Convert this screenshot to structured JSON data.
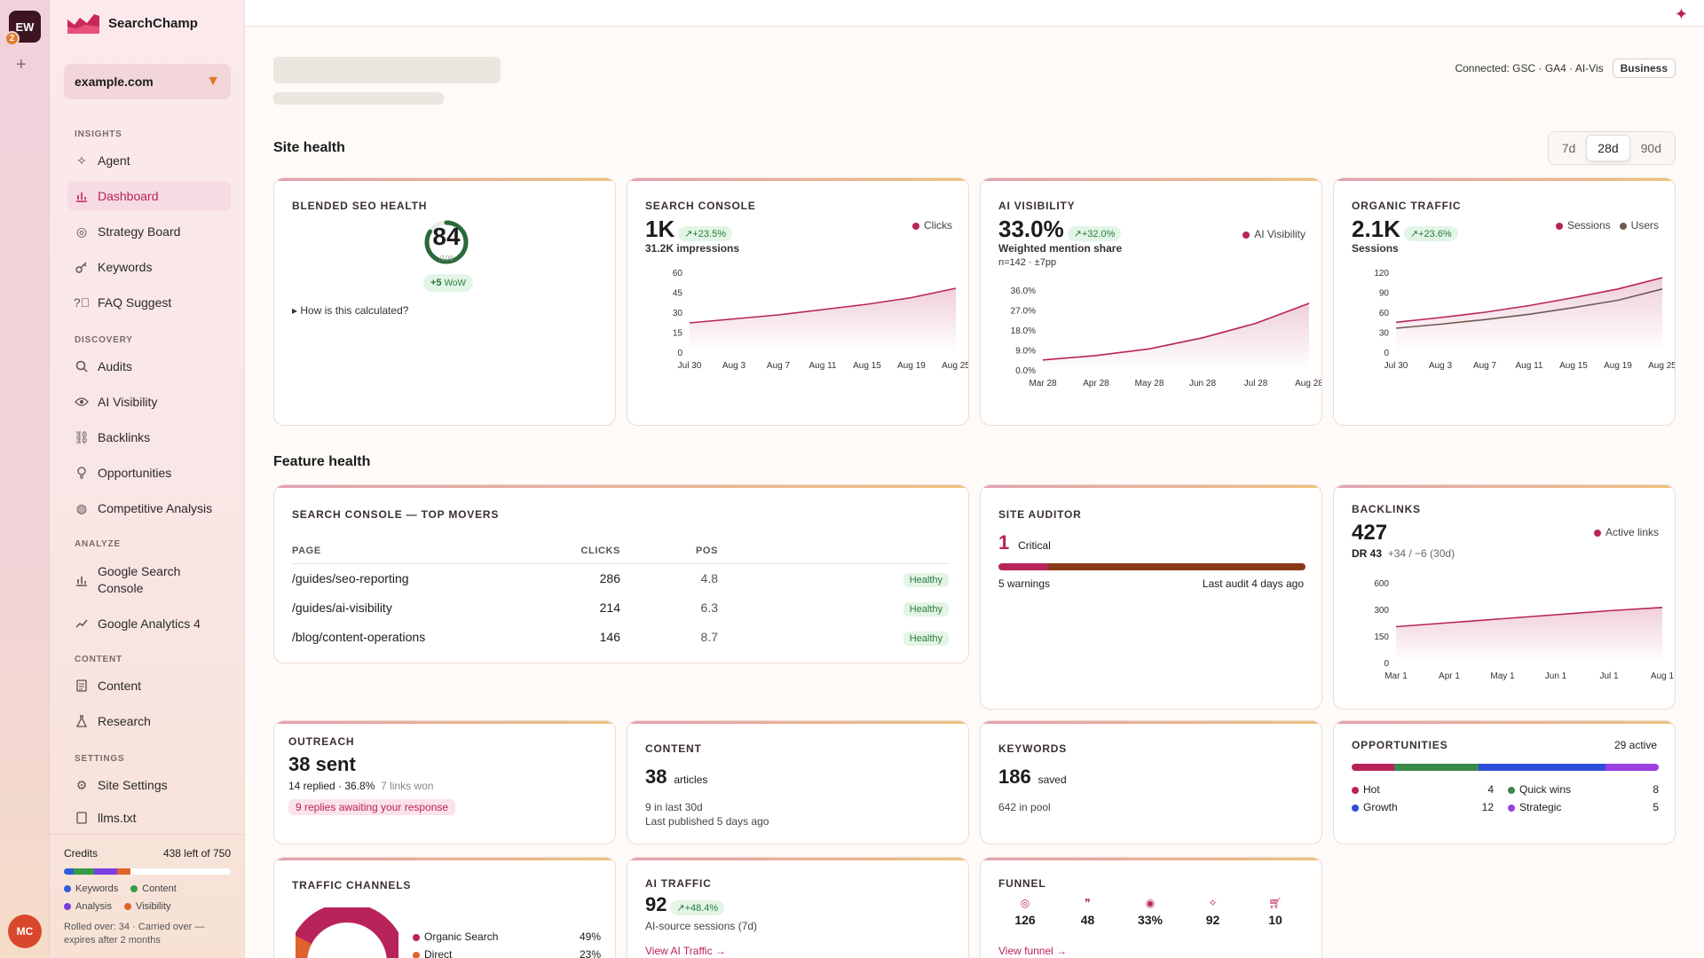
{
  "workspace": {
    "initials": "EW",
    "badge": "2",
    "user_initials": "MC"
  },
  "brand": {
    "name": "SearchChamp"
  },
  "site": {
    "selected": "example.com"
  },
  "nav": {
    "insights_label": "INSIGHTS",
    "agent": "Agent",
    "dashboard": "Dashboard",
    "strategy": "Strategy Board",
    "keywords": "Keywords",
    "faq": "FAQ Suggest",
    "discovery_label": "DISCOVERY",
    "audits": "Audits",
    "ai_visibility": "AI Visibility",
    "backlinks": "Backlinks",
    "opportunities": "Opportunities",
    "competitive": "Competitive Analysis",
    "analyze_label": "ANALYZE",
    "gsc": "Google Search Console",
    "ga4": "Google Analytics 4",
    "content_label": "CONTENT",
    "content": "Content",
    "research": "Research",
    "settings_label": "SETTINGS",
    "site_settings": "Site Settings",
    "llms": "llms.txt"
  },
  "credits": {
    "label": "Credits",
    "remaining": "438 left of 750",
    "segments": [
      {
        "name": "Keywords",
        "color": "#2f5ed8",
        "fraction": 0.06
      },
      {
        "name": "Content",
        "color": "#3a9a4a",
        "fraction": 0.12
      },
      {
        "name": "Analysis",
        "color": "#7b3fe0",
        "fraction": 0.14
      },
      {
        "name": "Visibility",
        "color": "#e0622c",
        "fraction": 0.08
      }
    ],
    "legend": [
      "Keywords",
      "Content",
      "Analysis",
      "Visibility"
    ],
    "note": "Rolled over: 34 · Carried over — expires after 2 months"
  },
  "header": {
    "connected": "Connected: GSC · GA4 · AI-Vis",
    "plan": "Business"
  },
  "site_health": {
    "title": "Site health",
    "ranges": [
      "7d",
      "28d",
      "90d"
    ],
    "selected_range": "28d"
  },
  "blended": {
    "title": "BLENDED SEO HEALTH",
    "score": "84",
    "score_sub": "/100",
    "delta": "+5",
    "delta_unit": "WoW",
    "how": "How is this calculated?",
    "fraction": 0.84
  },
  "gsc_card": {
    "title": "SEARCH CONSOLE",
    "value": "1K",
    "delta": "+23.5%",
    "sub": "31.2K impressions",
    "legend": "Clicks"
  },
  "ai_card": {
    "title": "AI VISIBILITY",
    "value": "33.0%",
    "delta": "+32.0%",
    "sub": "Weighted mention share",
    "sub2": "n=142 · ±7pp",
    "legend": "AI Visibility"
  },
  "traffic_card": {
    "title": "ORGANIC TRAFFIC",
    "value": "2.1K",
    "delta": "+23.6%",
    "sub": "Sessions",
    "legend": [
      "Sessions",
      "Users"
    ]
  },
  "feature_health": {
    "title": "Feature health"
  },
  "movers": {
    "title": "SEARCH CONSOLE — TOP MOVERS",
    "headers": [
      "PAGE",
      "CLICKS",
      "POS"
    ],
    "rows": [
      {
        "page": "/guides/seo-reporting",
        "clicks": "286",
        "pos": "4.8",
        "status": "Healthy"
      },
      {
        "page": "/guides/ai-visibility",
        "clicks": "214",
        "pos": "6.3",
        "status": "Healthy"
      },
      {
        "page": "/blog/content-operations",
        "clicks": "146",
        "pos": "8.7",
        "status": "Healthy"
      }
    ]
  },
  "auditor": {
    "title": "SITE AUDITOR",
    "critical": "1",
    "critical_label": "Critical",
    "warnings": "5 warnings",
    "last": "Last audit 4 days ago"
  },
  "backlinks": {
    "title": "BACKLINKS",
    "value": "427",
    "dr": "DR 43",
    "change": "+34 / −6 (30d)",
    "legend": "Active links"
  },
  "outreach": {
    "title": "OUTREACH",
    "value": "38 sent",
    "replied": "14 replied · 36.8%",
    "won": "7 links won",
    "awaiting": "9 replies awaiting your response"
  },
  "content_card": {
    "title": "CONTENT",
    "value": "38",
    "unit": "articles",
    "line1": "9 in last 30d",
    "line2": "Last published 5 days ago"
  },
  "keywords_card": {
    "title": "KEYWORDS",
    "value": "186",
    "unit": "saved",
    "line1": "642 in pool"
  },
  "opps": {
    "title": "OPPORTUNITIES",
    "active": "29 active",
    "items": [
      {
        "name": "Hot",
        "count": "4",
        "color": "#b8235a"
      },
      {
        "name": "Quick wins",
        "count": "8",
        "color": "#3a8a4a"
      },
      {
        "name": "Growth",
        "count": "12",
        "color": "#2f4fd8"
      },
      {
        "name": "Strategic",
        "count": "5",
        "color": "#9a3fe0"
      }
    ]
  },
  "channels": {
    "title": "TRAFFIC CHANNELS",
    "items": [
      {
        "name": "Organic Search",
        "pct": "49%",
        "color": "#b8235a"
      },
      {
        "name": "Direct",
        "pct": "23%",
        "color": "#e0622c"
      }
    ]
  },
  "ai_traffic": {
    "title": "AI TRAFFIC",
    "value": "92",
    "delta": "+48.4%",
    "sub": "AI-source sessions (7d)",
    "link": "View AI Traffic →"
  },
  "funnel": {
    "title": "FUNNEL",
    "items": [
      {
        "icon": "target-icon",
        "value": "126"
      },
      {
        "icon": "quote-icon",
        "value": "48"
      },
      {
        "icon": "eye-icon",
        "value": "33%"
      },
      {
        "icon": "sparkle-icon",
        "value": "92"
      },
      {
        "icon": "cart-icon",
        "value": "10"
      }
    ],
    "link": "View funnel →"
  },
  "chart_data": [
    {
      "type": "area",
      "title": "SEARCH CONSOLE",
      "x": [
        "Jul 30",
        "Aug 3",
        "Aug 7",
        "Aug 11",
        "Aug 15",
        "Aug 19",
        "Aug 25"
      ],
      "series": [
        {
          "name": "Clicks",
          "values": [
            22,
            25,
            28,
            32,
            36,
            41,
            48
          ]
        }
      ],
      "yticks": [
        "60",
        "45",
        "30",
        "15",
        "0"
      ],
      "ylim": [
        0,
        60
      ]
    },
    {
      "type": "area",
      "title": "AI VISIBILITY",
      "x": [
        "Mar 28",
        "Apr 28",
        "May 28",
        "Jun 28",
        "Jul 28",
        "Aug 28"
      ],
      "series": [
        {
          "name": "AI Visibility",
          "values": [
            4.5,
            6.5,
            9.5,
            14.5,
            21,
            30
          ]
        }
      ],
      "yticks": [
        "36.0%",
        "27.0%",
        "18.0%",
        "9.0%",
        "0.0%"
      ],
      "ylim": [
        0,
        36
      ]
    },
    {
      "type": "area",
      "title": "ORGANIC TRAFFIC",
      "x": [
        "Jul 30",
        "Aug 3",
        "Aug 7",
        "Aug 11",
        "Aug 15",
        "Aug 19",
        "Aug 25"
      ],
      "series": [
        {
          "name": "Sessions",
          "values": [
            45,
            52,
            60,
            70,
            82,
            95,
            112
          ]
        },
        {
          "name": "Users",
          "values": [
            36,
            42,
            49,
            57,
            67,
            78,
            95
          ]
        }
      ],
      "yticks": [
        "120",
        "90",
        "60",
        "30",
        "0"
      ],
      "ylim": [
        0,
        120
      ]
    },
    {
      "type": "area",
      "title": "BACKLINKS",
      "x": [
        "Mar 1",
        "Apr 1",
        "May 1",
        "Jun 1",
        "Jul 1",
        "Aug 1"
      ],
      "series": [
        {
          "name": "Active links",
          "values": [
            270,
            300,
            330,
            360,
            390,
            415
          ]
        }
      ],
      "yticks": [
        "600",
        "300",
        "150",
        "0"
      ],
      "ylim": [
        0,
        600
      ]
    }
  ]
}
